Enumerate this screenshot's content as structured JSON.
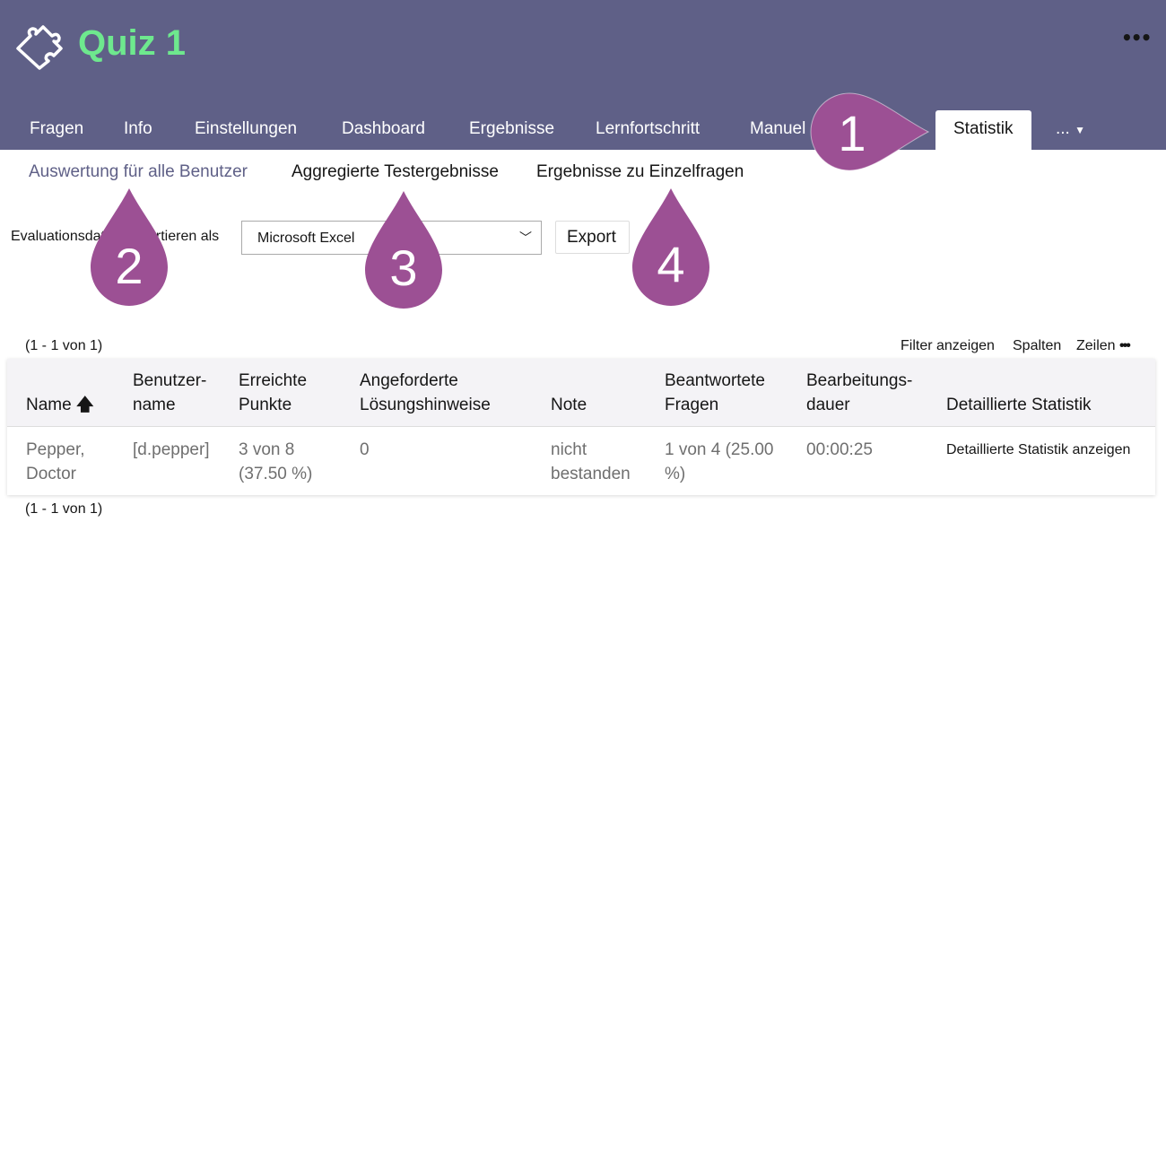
{
  "header": {
    "title": "Quiz 1",
    "logo_icon": "puzzle-icon",
    "more_icon": "ellipsis-icon",
    "bg": "#5f6087",
    "title_color": "#6ee88e"
  },
  "tabs": [
    {
      "label": "Fragen"
    },
    {
      "label": "Info"
    },
    {
      "label": "Einstellungen"
    },
    {
      "label": "Dashboard"
    },
    {
      "label": "Ergebnisse"
    },
    {
      "label": "Lernfortschritt"
    },
    {
      "label": "Manuel"
    },
    {
      "label": "Statistik",
      "active": true
    },
    {
      "label": "..."
    }
  ],
  "subtabs": [
    {
      "label": "Auswertung für alle Benutzer",
      "active": true
    },
    {
      "label": "Aggregierte Testergebnisse"
    },
    {
      "label": "Ergebnisse zu Einzelfragen"
    }
  ],
  "export": {
    "label": "Evaluationsdaten exportieren als",
    "label_visible_left": "Evaluationsda",
    "label_visible_right": "ortieren als",
    "format": "Microsoft Excel",
    "button": "Export"
  },
  "table": {
    "count_top": "(1 - 1 von 1)",
    "count_bottom": "(1 - 1 von 1)",
    "controls": {
      "filter": "Filter anzeigen",
      "columns": "Spalten",
      "rows": "Zeilen"
    },
    "columns": [
      {
        "l1": "Name",
        "l2": ""
      },
      {
        "l1": "Benutzer-",
        "l2": "name"
      },
      {
        "l1": "Erreichte",
        "l2": "Punkte"
      },
      {
        "l1": "Angeforderte",
        "l2": "Lösungshinweise"
      },
      {
        "l1": "",
        "l2": "Note"
      },
      {
        "l1": "Beantwortete",
        "l2": "Fragen"
      },
      {
        "l1": "Bearbeitungs-",
        "l2": "dauer"
      },
      {
        "l1": "",
        "l2": "Detaillierte Statistik"
      }
    ],
    "rows": [
      {
        "name": [
          "Pepper,",
          "Doctor"
        ],
        "user": "[d.pepper]",
        "points": [
          "3 von 8",
          "(37.50 %)"
        ],
        "hints": "0",
        "grade": [
          "nicht",
          "bestanden"
        ],
        "answered": [
          "1 von 4 (25.00",
          "%)"
        ],
        "duration": "00:00:25",
        "detail": "Detaillierte Statistik anzeigen"
      }
    ]
  },
  "markers": {
    "color": "#9c5094",
    "labels": [
      "1",
      "2",
      "3",
      "4"
    ]
  }
}
